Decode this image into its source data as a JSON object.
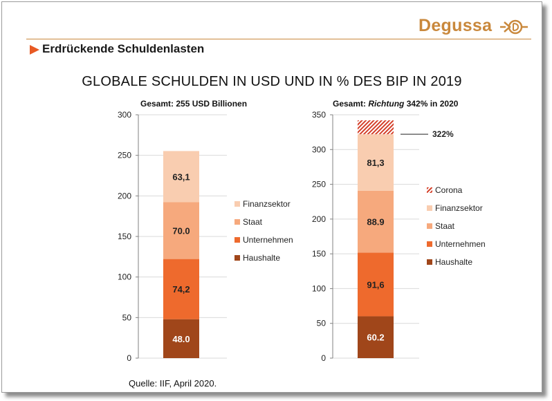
{
  "header": {
    "logo_text": "Degussa",
    "section_title": "Erdrückende Schuldenlasten"
  },
  "main_title": "GLOBALE SCHULDEN IN USD UND IN % DES BIP IN 2019",
  "source": "Quelle:  IIF, April 2020.",
  "colors": {
    "haushalte": "#a0461a",
    "unternehmen": "#ee6a2d",
    "staat": "#f6a97d",
    "finanzsektor": "#f9cdb0",
    "corona": "#d4402a",
    "accent": "#c9883c"
  },
  "chart_data": [
    {
      "type": "bar",
      "stacked": true,
      "subtitle": "Gesamt: 255 USD Billionen",
      "ylim": [
        0,
        300
      ],
      "yticks": [
        0,
        50,
        100,
        150,
        200,
        250,
        300
      ],
      "legend_position": "right",
      "legend": [
        "Finanzsektor",
        "Staat",
        "Unternehmen",
        "Haushalte"
      ],
      "series": [
        {
          "name": "Haushalte",
          "value": 48.0,
          "label": "48.0"
        },
        {
          "name": "Unternehmen",
          "value": 74.2,
          "label": "74,2"
        },
        {
          "name": "Staat",
          "value": 70.0,
          "label": "70.0"
        },
        {
          "name": "Finanzsektor",
          "value": 63.1,
          "label": "63,1"
        }
      ]
    },
    {
      "type": "bar",
      "stacked": true,
      "subtitle_plain": "Gesamt: ",
      "subtitle_italic": "Richtung",
      "subtitle_rest": " 342% in 2020",
      "ylim": [
        0,
        350
      ],
      "yticks": [
        0,
        50,
        100,
        150,
        200,
        250,
        300,
        350
      ],
      "legend_position": "right",
      "legend": [
        "Corona",
        "Finanzsektor",
        "Staat",
        "Unternehmen",
        "Haushalte"
      ],
      "annotation": "322%",
      "series": [
        {
          "name": "Haushalte",
          "value": 60.2,
          "label": "60.2"
        },
        {
          "name": "Unternehmen",
          "value": 91.6,
          "label": "91,6"
        },
        {
          "name": "Staat",
          "value": 88.9,
          "label": "88.9"
        },
        {
          "name": "Finanzsektor",
          "value": 81.3,
          "label": "81,3"
        },
        {
          "name": "Corona",
          "value": 20,
          "label": ""
        }
      ]
    }
  ]
}
